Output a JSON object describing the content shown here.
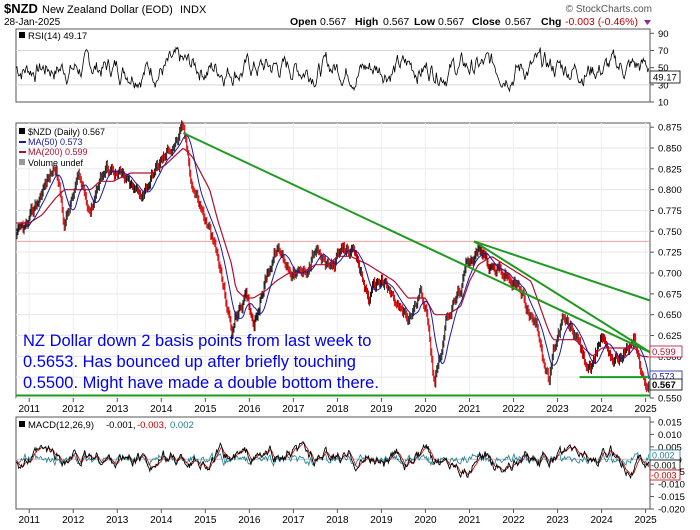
{
  "header": {
    "symbol": "$NZD",
    "name": "New Zealand Dollar (EOD)",
    "exchange": "INDX",
    "date": "28-Jan-2025",
    "brand": "© StockCharts.com",
    "quote": {
      "open_label": "Open",
      "open": "0.567",
      "high_label": "High",
      "high": "0.567",
      "low_label": "Low",
      "low": "0.567",
      "close_label": "Close",
      "close": "0.567",
      "chg_label": "Chg",
      "chg": "-0.003 (-0.46%)"
    }
  },
  "colors": {
    "price": "#000000",
    "up_bar": "#1a1a1a",
    "down_bar": "#d40000",
    "ma50": "#1a1aa0",
    "ma200": "#b01030",
    "trend": "#1f9a1f",
    "rsi": "#000000",
    "macd": "#000000",
    "signal": "#c00000",
    "histogram": "#1f7f8f",
    "annotation": "#0000ee"
  },
  "chart_data": [
    {
      "type": "line",
      "panel": "rsi",
      "legend": "RSI(14) 49.17",
      "current_label": "49.17",
      "ylim": [
        10,
        95
      ],
      "yticks": [
        "90",
        "70",
        "50",
        "30",
        "10"
      ],
      "bands": [
        30,
        70
      ],
      "current": 49.17,
      "mean": 50,
      "amplitude": 18
    },
    {
      "type": "line",
      "panel": "price",
      "legend": [
        {
          "name": "$NZD (Daily) 0.567",
          "icon": "black-square"
        },
        {
          "name": "MA(50) 0.573",
          "icon": "blue-line"
        },
        {
          "name": "MA(200) 0.599",
          "icon": "red-line"
        },
        {
          "name": "Volume undef",
          "icon": "gray-square"
        }
      ],
      "ylim": [
        0.55,
        0.88
      ],
      "yticks": [
        "0.875",
        "0.850",
        "0.825",
        "0.800",
        "0.775",
        "0.750",
        "0.725",
        "0.700",
        "0.675",
        "0.650",
        "0.625",
        "0.600",
        "0.575",
        "0.550"
      ],
      "x_years": [
        "2011",
        "2012",
        "2013",
        "2014",
        "2015",
        "2016",
        "2017",
        "2018",
        "2019",
        "2020",
        "2021",
        "2022",
        "2023",
        "2024",
        "2025"
      ],
      "xlim": [
        2010.7,
        2025.1
      ],
      "x": [
        2010.7,
        2011.0,
        2011.3,
        2011.6,
        2011.8,
        2012.1,
        2012.4,
        2012.6,
        2012.9,
        2013.3,
        2013.5,
        2013.8,
        2014.1,
        2014.3,
        2014.5,
        2014.7,
        2014.9,
        2015.1,
        2015.3,
        2015.6,
        2015.7,
        2015.9,
        2016.1,
        2016.4,
        2016.6,
        2016.9,
        2017.2,
        2017.5,
        2017.8,
        2018.0,
        2018.3,
        2018.7,
        2019.0,
        2019.3,
        2019.6,
        2019.9,
        2020.0,
        2020.2,
        2020.5,
        2020.8,
        2021.0,
        2021.2,
        2021.5,
        2021.8,
        2022.1,
        2022.4,
        2022.6,
        2022.8,
        2022.9,
        2023.1,
        2023.4,
        2023.6,
        2023.8,
        2024.0,
        2024.3,
        2024.6,
        2024.75,
        2024.9,
        2025.0,
        2025.07
      ],
      "close": [
        0.74,
        0.755,
        0.8,
        0.83,
        0.76,
        0.81,
        0.78,
        0.82,
        0.83,
        0.8,
        0.79,
        0.82,
        0.84,
        0.86,
        0.87,
        0.81,
        0.78,
        0.75,
        0.71,
        0.63,
        0.65,
        0.67,
        0.645,
        0.7,
        0.73,
        0.71,
        0.695,
        0.73,
        0.7,
        0.715,
        0.73,
        0.67,
        0.695,
        0.665,
        0.64,
        0.675,
        0.665,
        0.575,
        0.65,
        0.68,
        0.72,
        0.73,
        0.705,
        0.7,
        0.68,
        0.65,
        0.625,
        0.57,
        0.6,
        0.64,
        0.625,
        0.595,
        0.58,
        0.625,
        0.6,
        0.61,
        0.625,
        0.58,
        0.555,
        0.567
      ],
      "ma200": [
        0.76,
        0.76,
        0.77,
        0.79,
        0.8,
        0.8,
        0.8,
        0.81,
        0.81,
        0.82,
        0.82,
        0.82,
        0.83,
        0.84,
        0.85,
        0.84,
        0.82,
        0.8,
        0.76,
        0.71,
        0.68,
        0.67,
        0.67,
        0.68,
        0.69,
        0.7,
        0.7,
        0.71,
        0.71,
        0.72,
        0.72,
        0.71,
        0.7,
        0.69,
        0.67,
        0.67,
        0.67,
        0.65,
        0.65,
        0.66,
        0.69,
        0.71,
        0.72,
        0.71,
        0.7,
        0.69,
        0.66,
        0.63,
        0.62,
        0.62,
        0.62,
        0.61,
        0.6,
        0.61,
        0.61,
        0.61,
        0.61,
        0.6,
        0.6,
        0.599
      ],
      "ma50_current": 0.573,
      "ma200_current": 0.599,
      "price_current": 0.567,
      "price_label": "0.567",
      "ma200_label": "0.599",
      "ma50_label": "0.573",
      "reference_line": 0.738,
      "trendlines": [
        {
          "from": [
            2014.5,
            0.868
          ],
          "to": [
            2025.1,
            0.605
          ]
        },
        {
          "from": [
            2021.1,
            0.738
          ],
          "to": [
            2025.1,
            0.667
          ]
        },
        {
          "from": [
            2021.1,
            0.738
          ],
          "to": [
            2025.1,
            0.605
          ]
        },
        {
          "from": [
            2023.5,
            0.575
          ],
          "to": [
            2025.1,
            0.575
          ]
        },
        {
          "from": [
            2010.7,
            0.553
          ],
          "to": [
            2025.1,
            0.553
          ]
        }
      ],
      "annotation": [
        "NZ Dollar down 2 basis points from last week to",
        "0.5653. Has bounced up after briefly touching",
        "0.5500. Might have made a double bottom there."
      ]
    },
    {
      "type": "line",
      "panel": "macd",
      "legend_prefix": "MACD(12,26,9)",
      "legend_values": [
        "-0.001,",
        "-0.003,",
        "0.002"
      ],
      "ylim": [
        -0.02,
        0.017
      ],
      "yticks": [
        "0.015",
        "0.010",
        "0.005",
        "0.000",
        "-0.005",
        "-0.010",
        "-0.015",
        "-0.020"
      ],
      "current_labels": [
        "0.002",
        "-0.001",
        "-0.003"
      ],
      "macd_current": -0.001,
      "signal_current": -0.003,
      "hist_current": 0.002,
      "amplitude": 0.007,
      "x_years": [
        "2011",
        "2012",
        "2013",
        "2014",
        "2015",
        "2016",
        "2017",
        "2018",
        "2019",
        "2020",
        "2021",
        "2022",
        "2023",
        "2024",
        "2025"
      ]
    }
  ]
}
